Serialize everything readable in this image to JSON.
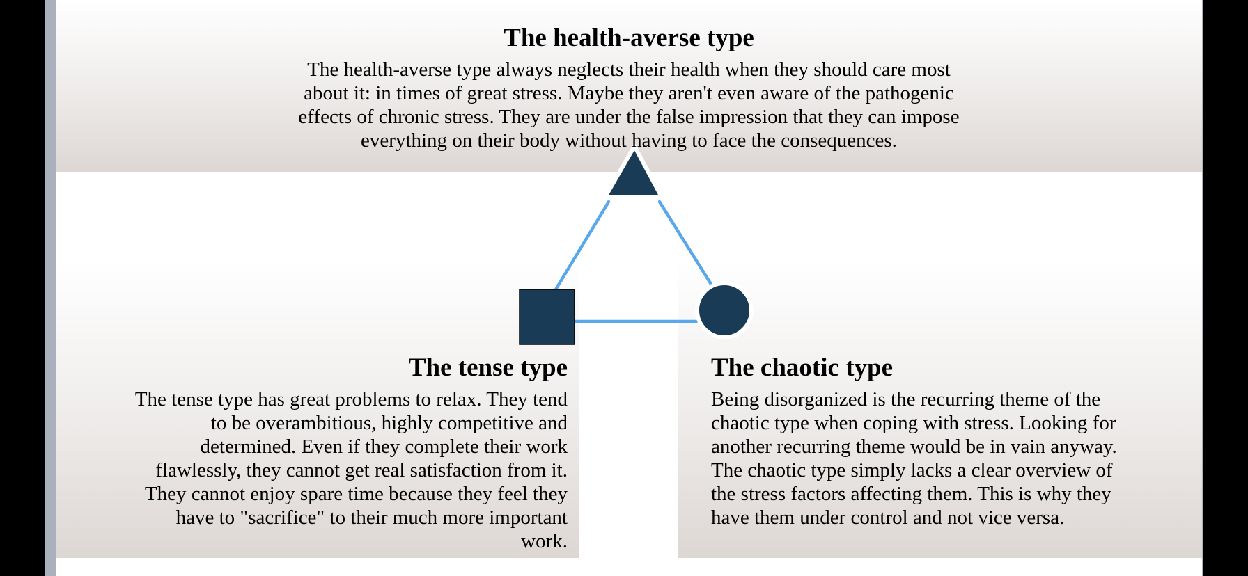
{
  "diagram": {
    "colors": {
      "shape_fill": "#1a3b55",
      "connector": "#5aa8ec",
      "panel_gradient": [
        "#ffffff",
        "#ddd7d4"
      ]
    },
    "nodes": [
      {
        "id": "health-averse",
        "shape": "triangle",
        "title": "The health-averse type",
        "description": "The health-averse type always neglects their health when they should care most about it: in times of great stress. Maybe they aren't even aware of the pathogenic effects of chronic stress. They are under the false impression that they can impose everything on their body without having to face the consequences."
      },
      {
        "id": "tense",
        "shape": "square",
        "title": "The tense type",
        "description": "The tense type has great problems to relax. They tend to be overambitious, highly competitive and determined. Even if they complete their work flawlessly, they cannot get real satisfaction from it. They cannot enjoy spare time because they feel they have to \"sacrifice\" to their much more important work."
      },
      {
        "id": "chaotic",
        "shape": "circle",
        "title": "The chaotic type",
        "description": "Being disorganized is the recurring theme of the chaotic type when coping with stress. Looking for another recurring theme would be in vain anyway. The chaotic type simply lacks a clear overview of the stress factors affecting them. This is why they have them under control and not vice versa."
      }
    ],
    "connectors": [
      {
        "from": "health-averse",
        "to": "tense"
      },
      {
        "from": "health-averse",
        "to": "chaotic"
      },
      {
        "from": "tense",
        "to": "chaotic"
      }
    ]
  }
}
